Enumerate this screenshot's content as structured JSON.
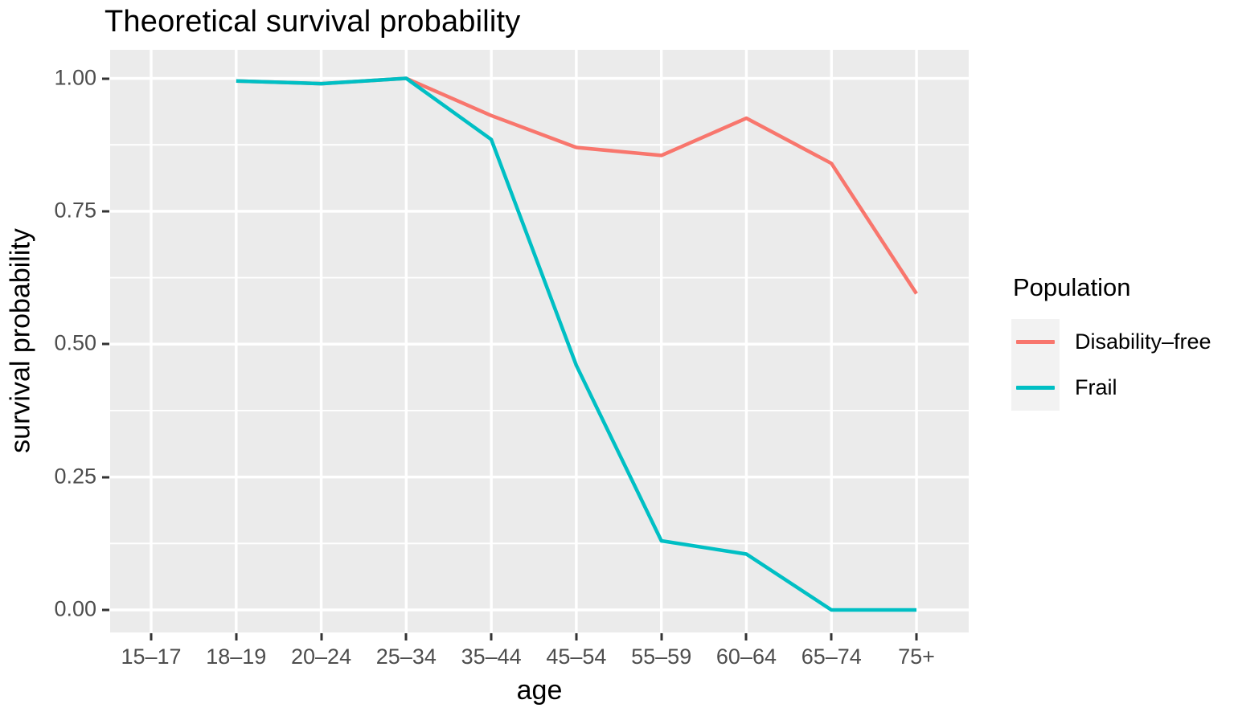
{
  "title": "Theoretical survival probability",
  "axes": {
    "x": {
      "label": "age",
      "tick_labels": [
        "15–17",
        "18–19",
        "20–24",
        "25–34",
        "35–44",
        "45–54",
        "55–59",
        "60–64",
        "65–74",
        "75+"
      ]
    },
    "y": {
      "label": "survival probability",
      "tick_labels": [
        "1.00",
        "0.75",
        "0.50",
        "0.25",
        "0.00"
      ]
    }
  },
  "legend": {
    "title": "Population",
    "items": [
      {
        "label": "Disability–free",
        "color": "#F8766D"
      },
      {
        "label": "Frail",
        "color": "#00BFC4"
      }
    ]
  },
  "colors": {
    "panel_background": "#EBEBEB",
    "gridline": "#FFFFFF",
    "tick_text": "#4D4D4D",
    "tick_mark": "#333333",
    "legend_key_background": "#F2F2F2",
    "disability_free": "#F8766D",
    "frail": "#00BFC4"
  },
  "chart_data": {
    "type": "line",
    "title": "Theoretical survival probability",
    "xlabel": "age",
    "ylabel": "survival probability",
    "categories": [
      "15–17",
      "18–19",
      "20–24",
      "25–34",
      "35–44",
      "45–54",
      "55–59",
      "60–64",
      "65–74",
      "75+"
    ],
    "ylim": [
      0.0,
      1.0
    ],
    "y_major_ticks": [
      0.0,
      0.25,
      0.5,
      0.75,
      1.0
    ],
    "y_minor_gridlines": [
      0.125,
      0.375,
      0.625,
      0.875
    ],
    "grid": true,
    "legend_position": "right",
    "legend_title": "Population",
    "series": [
      {
        "name": "Disability–free",
        "color": "#F8766D",
        "values": [
          null,
          0.995,
          0.99,
          1.0,
          0.93,
          0.87,
          0.855,
          0.925,
          0.84,
          0.595
        ]
      },
      {
        "name": "Frail",
        "color": "#00BFC4",
        "values": [
          null,
          0.995,
          0.99,
          1.0,
          0.885,
          0.46,
          0.13,
          0.105,
          0.0,
          0.0
        ]
      }
    ]
  }
}
